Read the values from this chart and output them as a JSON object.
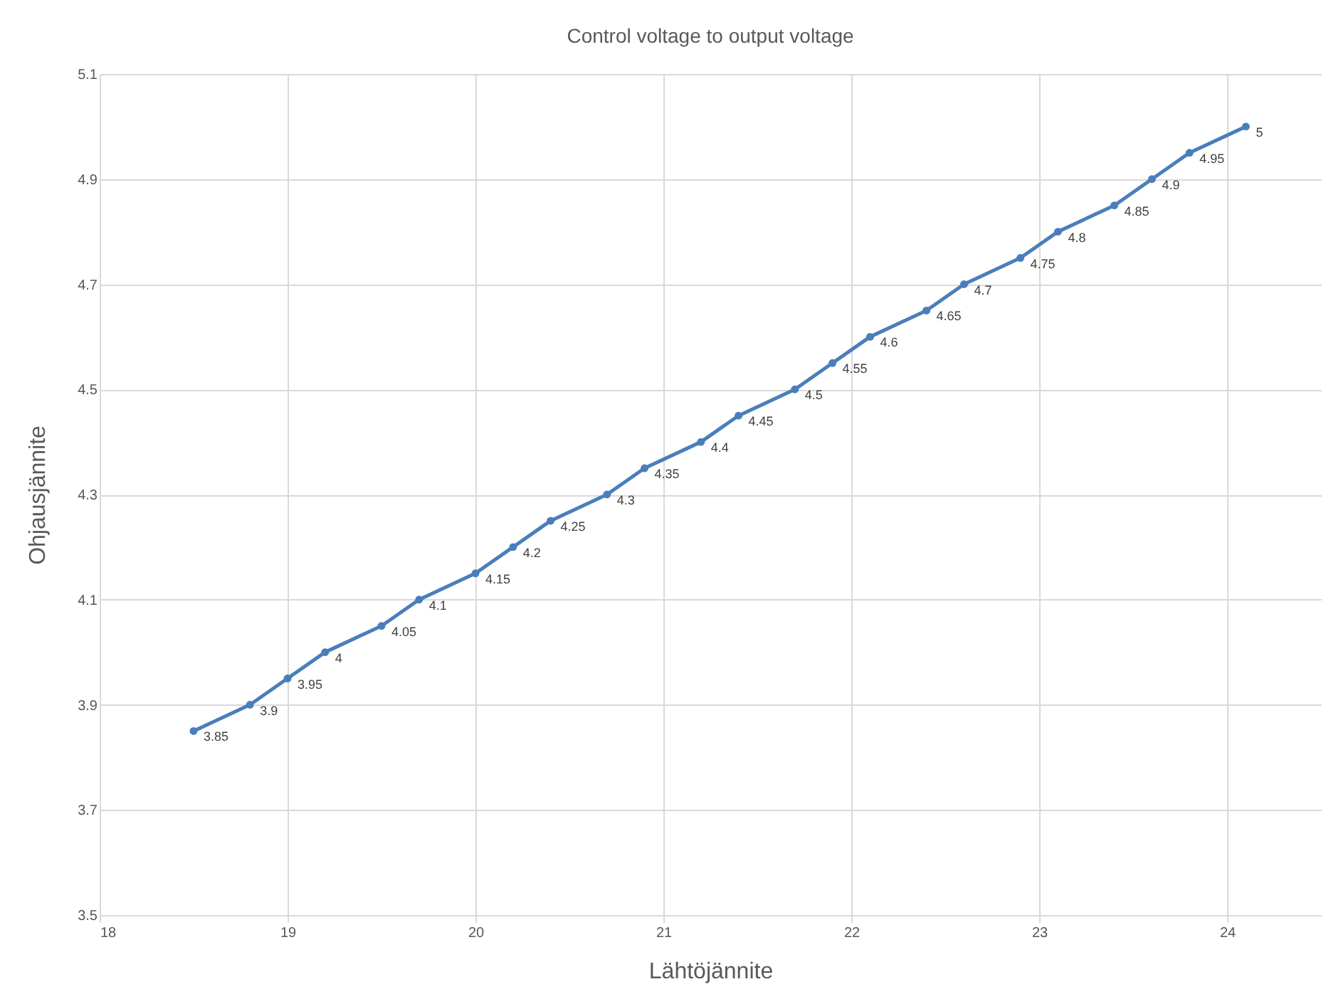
{
  "chart_data": {
    "type": "line",
    "title": "Control voltage to output voltage",
    "xlabel": "Lähtöjännite",
    "ylabel": "Ohjausjännite",
    "x": [
      18.5,
      18.8,
      19.0,
      19.2,
      19.5,
      19.7,
      20.0,
      20.2,
      20.4,
      20.7,
      20.9,
      21.2,
      21.4,
      21.7,
      21.9,
      22.1,
      22.4,
      22.6,
      22.9,
      23.1,
      23.4,
      23.6,
      23.8,
      24.1
    ],
    "series": [
      {
        "color": "#4a7ebb",
        "values": [
          3.85,
          3.9,
          3.95,
          4,
          4.05,
          4.1,
          4.15,
          4.2,
          4.25,
          4.3,
          4.35,
          4.4,
          4.45,
          4.5,
          4.55,
          4.6,
          4.65,
          4.7,
          4.75,
          4.8,
          4.85,
          4.9,
          4.95,
          5
        ]
      }
    ],
    "xlim": [
      18,
      24.5
    ],
    "xticks": [
      18,
      19,
      20,
      21,
      22,
      23,
      24
    ],
    "ylim": [
      3.5,
      5.1
    ],
    "yticks": [
      3.5,
      3.7,
      3.9,
      4.1,
      4.3,
      4.5,
      4.7,
      4.9,
      5.1
    ],
    "grid": true,
    "marker": "circle",
    "data_labels": true,
    "line_style": "solid"
  }
}
